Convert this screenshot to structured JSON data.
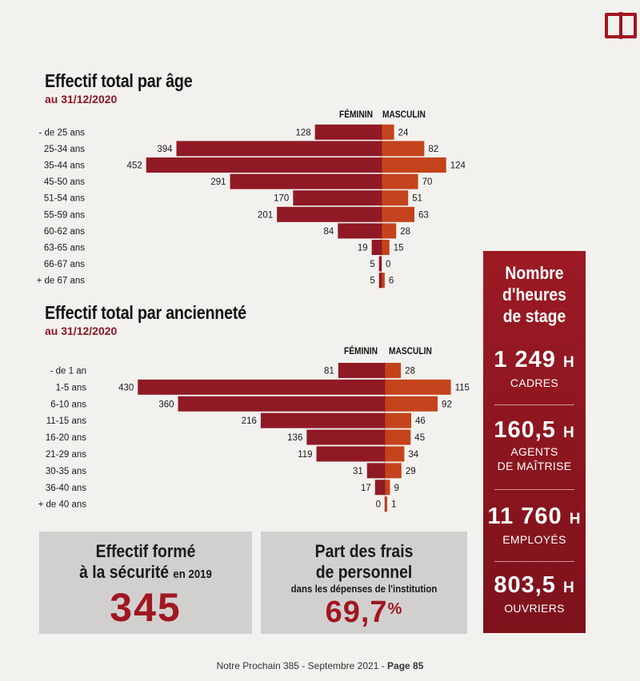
{
  "colors": {
    "feminin": "#8f1a25",
    "masculin": "#c4431c",
    "accent": "#9c1a24"
  },
  "icons": {
    "book": "book-icon"
  },
  "chart_data": [
    {
      "type": "bar",
      "orientation": "horizontal-pyramid",
      "title": "Effectif total par âge",
      "subtitle": "au 31/12/2020",
      "categories": [
        "- de 25 ans",
        "25-34 ans",
        "35-44 ans",
        "45-50 ans",
        "51-54 ans",
        "55-59 ans",
        "60-62 ans",
        "63-65 ans",
        "66-67 ans",
        "+ de 67 ans"
      ],
      "series": [
        {
          "name": "FÉMININ",
          "values": [
            128,
            394,
            452,
            291,
            170,
            201,
            84,
            19,
            5,
            5
          ]
        },
        {
          "name": "MASCULIN",
          "values": [
            24,
            82,
            124,
            70,
            51,
            63,
            28,
            15,
            0,
            6
          ]
        }
      ]
    },
    {
      "type": "bar",
      "orientation": "horizontal-pyramid",
      "title": "Effectif total par ancienneté",
      "subtitle": "au 31/12/2020",
      "categories": [
        "- de 1 an",
        "1-5 ans",
        "6-10 ans",
        "11-15 ans",
        "16-20 ans",
        "21-29 ans",
        "30-35 ans",
        "36-40 ans",
        "+ de 40 ans"
      ],
      "series": [
        {
          "name": "FÉMININ",
          "values": [
            81,
            430,
            360,
            216,
            136,
            119,
            31,
            17,
            0
          ]
        },
        {
          "name": "MASCULIN",
          "values": [
            28,
            115,
            92,
            46,
            45,
            34,
            29,
            9,
            1
          ]
        }
      ]
    }
  ],
  "card_security": {
    "title_line1": "Effectif formé",
    "title_line2": "à la sécurité",
    "title_suffix": "en 2019",
    "value": "345"
  },
  "card_frais": {
    "title_line1": "Part des frais",
    "title_line2": "de personnel",
    "subtitle": "dans les dépenses de l'institution",
    "value_main": "69,7",
    "value_unit": "%"
  },
  "stage_panel": {
    "title_line1": "Nombre",
    "title_line2": "d'heures",
    "title_line3": "de stage",
    "stats": [
      {
        "value": "1 249",
        "unit": "H",
        "label1": "CADRES",
        "label2": ""
      },
      {
        "value": "160,5",
        "unit": "H",
        "label1": "AGENTS",
        "label2": "DE MAÎTRISE"
      },
      {
        "value": "11 760",
        "unit": "H",
        "label1": "EMPLOYÉS",
        "label2": ""
      },
      {
        "value": "803,5",
        "unit": "H",
        "label1": "OUVRIERS",
        "label2": ""
      }
    ]
  },
  "footer": {
    "text": "Notre Prochain 385 - Septembre 2021 - ",
    "page": "Page 85"
  }
}
